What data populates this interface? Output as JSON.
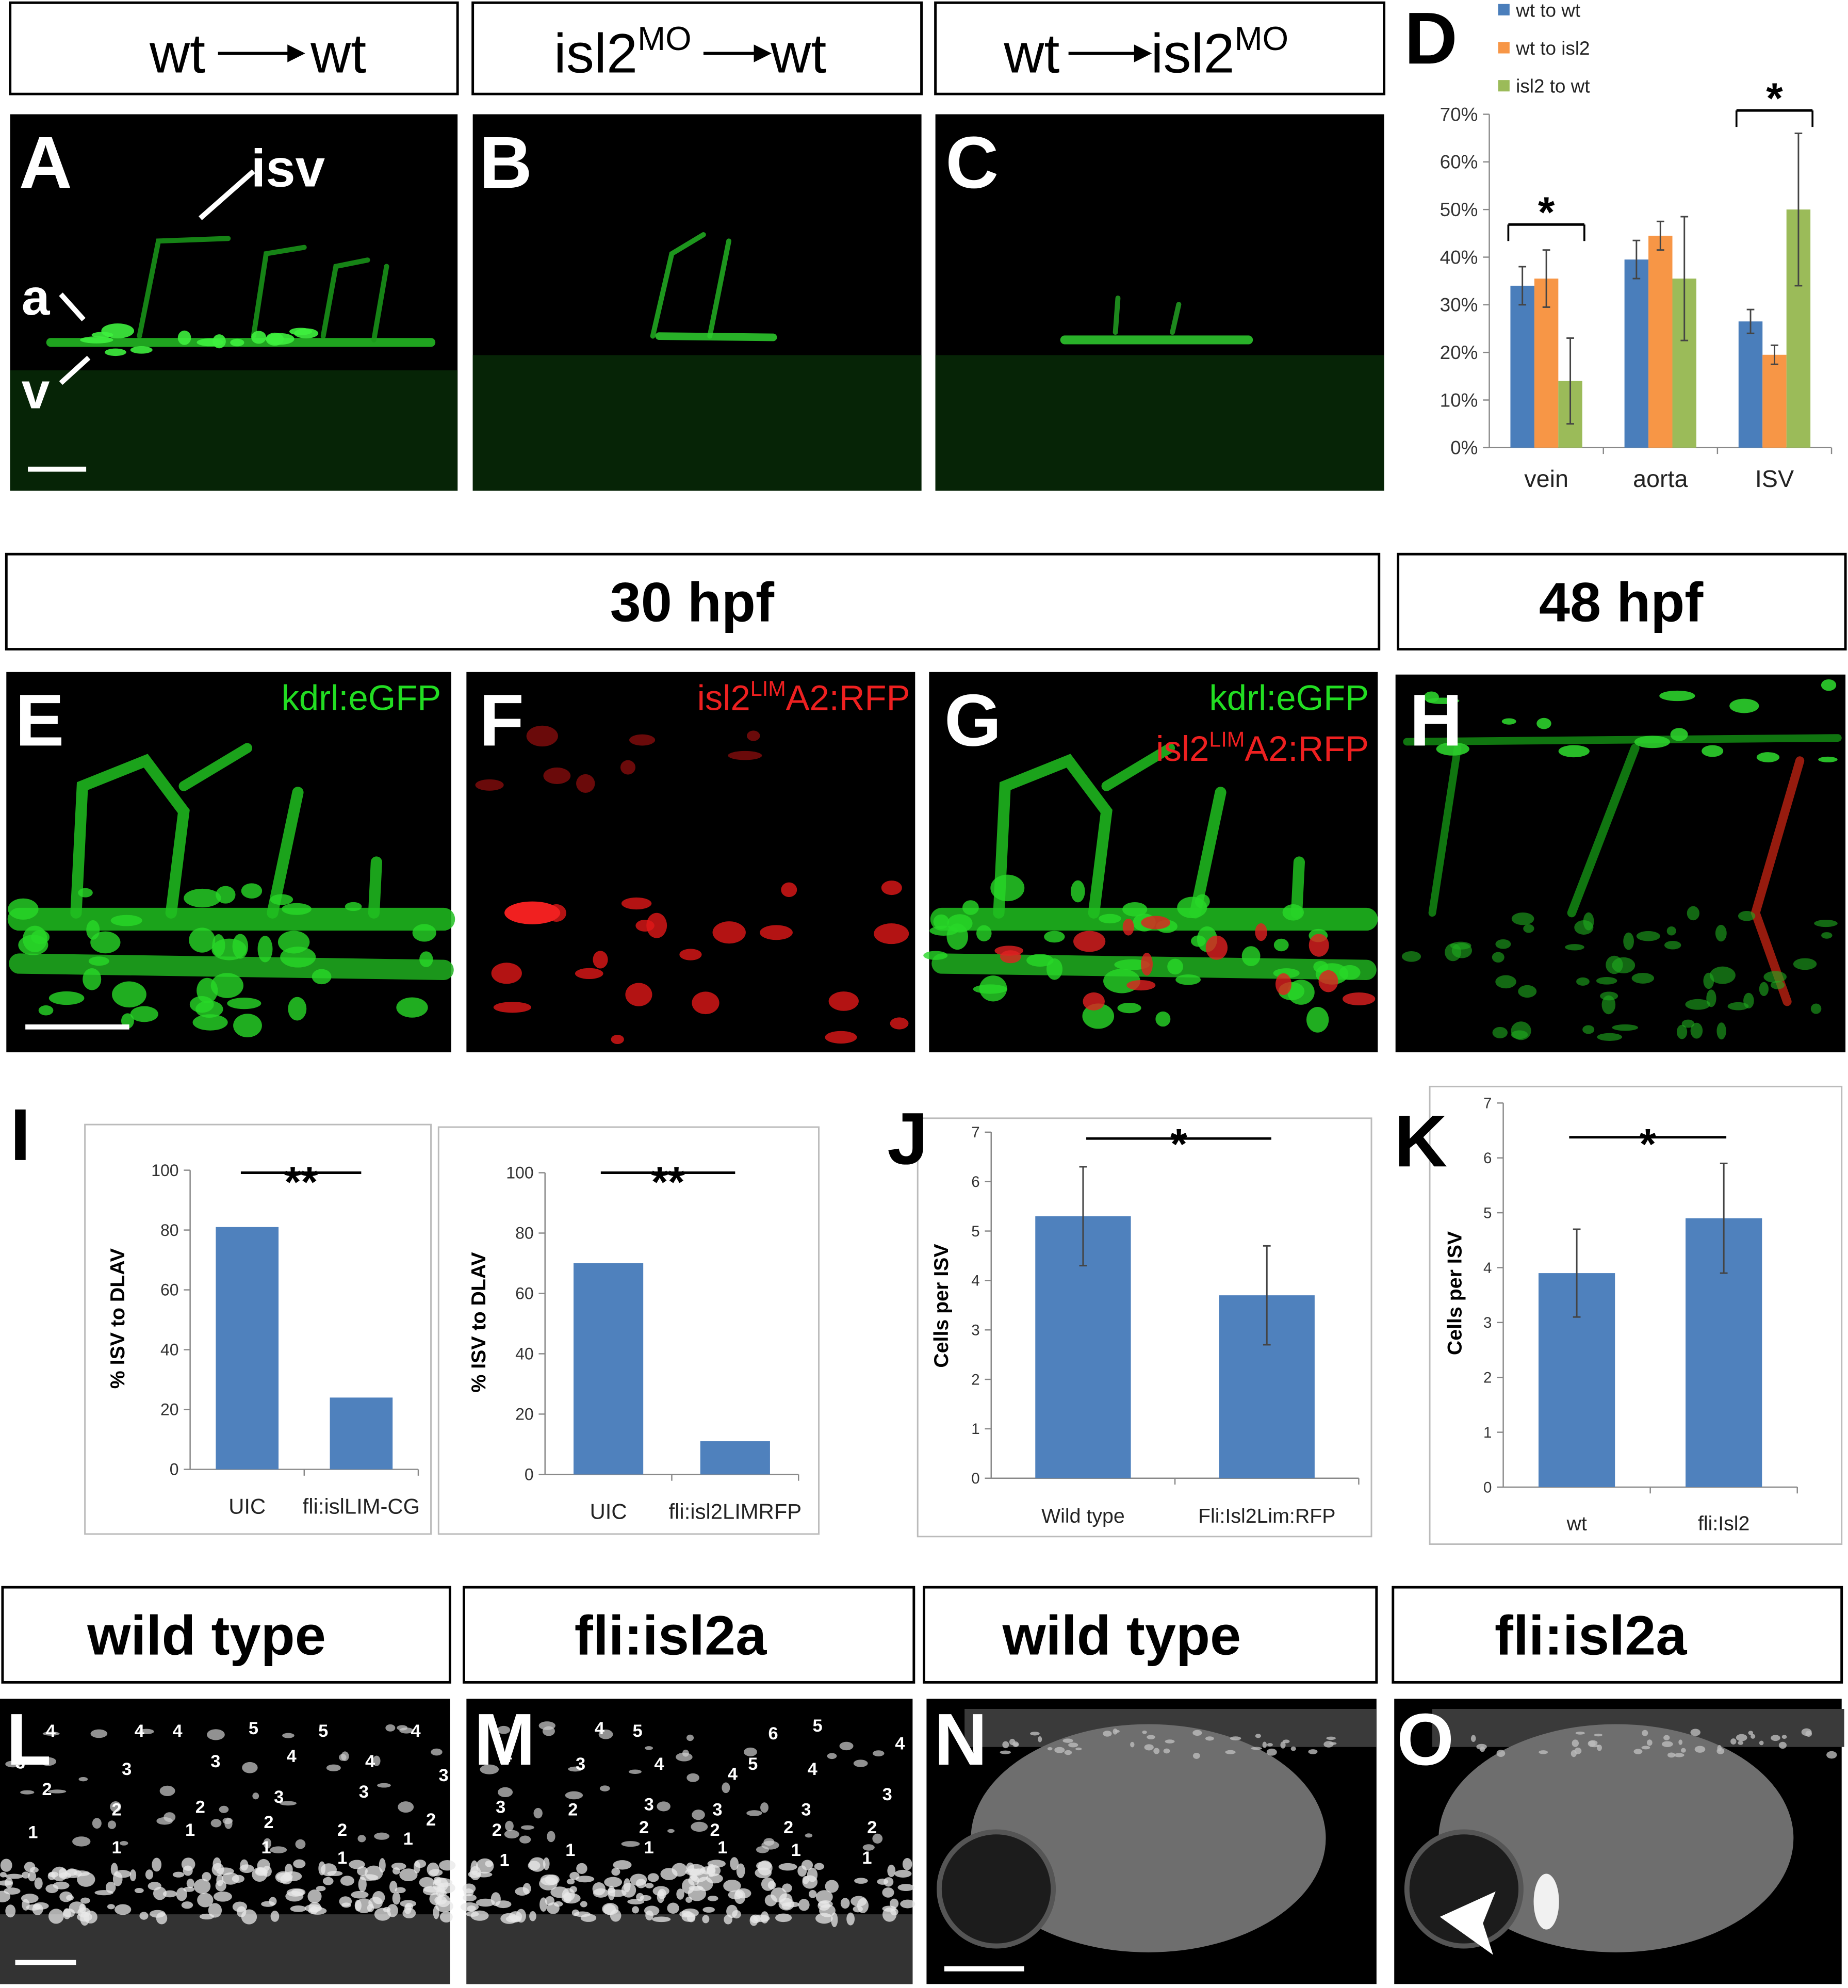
{
  "top_headers": [
    {
      "left": "wt",
      "right": "wt"
    },
    {
      "left": "isl2",
      "left_sup": "MO",
      "right": "wt"
    },
    {
      "left": "wt",
      "right": "isl2",
      "right_sup": "MO"
    }
  ],
  "mid_headers": [
    "30 hpf",
    "48 hpf"
  ],
  "bottom_headers": [
    "wild type",
    "fli:isl2a",
    "wild type",
    "fli:isl2a"
  ],
  "panel_letters": [
    "A",
    "B",
    "C",
    "D",
    "E",
    "F",
    "G",
    "H",
    "I",
    "J",
    "K",
    "L",
    "M",
    "N",
    "O"
  ],
  "panel_A": {
    "isv": "isv",
    "a": "a",
    "v": "v"
  },
  "panel_E": {
    "label": "kdrl:eGFP"
  },
  "panel_F": {
    "label": [
      "isl2",
      "LIM",
      "A2:RFP"
    ]
  },
  "panel_G": {
    "label_green": "kdrl:eGFP",
    "label_red": [
      "isl2",
      "LIM",
      "A2:RFP"
    ]
  },
  "panel_L": {
    "cell_numbers": [
      "4",
      "3",
      "2",
      "1",
      "4",
      "4",
      "5",
      "5",
      "4",
      "3",
      "4",
      "4",
      "3",
      "3",
      "3",
      "3",
      "2",
      "2",
      "2",
      "2",
      "1",
      "1",
      "1",
      "2",
      "1",
      "1"
    ]
  },
  "panel_M": {
    "cell_numbers": [
      "4",
      "5",
      "6",
      "5",
      "4",
      "4",
      "3",
      "4",
      "4",
      "5",
      "4",
      "3",
      "3",
      "2",
      "1",
      "2",
      "3",
      "2",
      "3",
      "3",
      "2",
      "2",
      "2",
      "1",
      "1",
      "1",
      "1",
      "1"
    ]
  },
  "chart_data": [
    {
      "type": "bar",
      "ylim": [
        0,
        70
      ],
      "yticks": [
        {
          "value": 0,
          "label": "0%"
        },
        {
          "value": 10,
          "label": "10%"
        },
        {
          "value": 20,
          "label": "20%"
        },
        {
          "value": 30,
          "label": "30%"
        },
        {
          "value": 40,
          "label": "40%"
        },
        {
          "value": 50,
          "label": "50%"
        },
        {
          "value": 60,
          "label": "60%"
        },
        {
          "value": 70,
          "label": "70%"
        }
      ],
      "categories": [
        "vein",
        "aorta",
        "ISV"
      ],
      "series": [
        {
          "name": "wt to wt",
          "color": "#4a7ebb",
          "values": [
            34,
            39.5,
            26.5
          ],
          "errors": [
            4,
            4,
            2.5
          ]
        },
        {
          "name": "wt to isl2",
          "color": "#f79646",
          "values": [
            35.5,
            44.5,
            19.5
          ],
          "errors": [
            6,
            3,
            2
          ]
        },
        {
          "name": "isl2 to wt",
          "color": "#9bbb59",
          "values": [
            14,
            35.5,
            50
          ],
          "errors": [
            9,
            13,
            16
          ]
        }
      ],
      "significance": [
        "*",
        "*"
      ]
    },
    {
      "type": "bar",
      "y_label": "% ISV to DLAV",
      "ylim": [
        0,
        100
      ],
      "yticks": [
        0,
        20,
        40,
        60,
        80,
        100
      ],
      "categories": [
        "UIC",
        "fli:islLIM-CG"
      ],
      "values": [
        81,
        24
      ],
      "color": "#4f81bd",
      "significance": [
        "**"
      ]
    },
    {
      "type": "bar",
      "y_label": "% ISV to DLAV",
      "ylim": [
        0,
        100
      ],
      "yticks": [
        0,
        20,
        40,
        60,
        80,
        100
      ],
      "categories": [
        "UIC",
        "fli:isl2LIMRFP"
      ],
      "values": [
        70,
        11
      ],
      "color": "#4f81bd",
      "significance": [
        "**"
      ]
    },
    {
      "type": "bar",
      "y_label": "Cells per ISV",
      "ylim": [
        0,
        7
      ],
      "yticks": [
        0,
        1,
        2,
        3,
        4,
        5,
        6,
        7
      ],
      "categories": [
        "Wild type",
        "Fli:Isl2Lim:RFP"
      ],
      "values": [
        5.3,
        3.7
      ],
      "errors": [
        1,
        1
      ],
      "color": "#4f81bd",
      "significance": [
        "*"
      ]
    },
    {
      "type": "bar",
      "y_label": "Cells per ISV",
      "ylim": [
        0,
        7
      ],
      "yticks": [
        0,
        1,
        2,
        3,
        4,
        5,
        6,
        7
      ],
      "categories": [
        "wt",
        "fli:Isl2"
      ],
      "values": [
        3.9,
        4.9
      ],
      "errors": [
        0.8,
        1
      ],
      "color": "#4f81bd",
      "significance": [
        "*"
      ]
    }
  ]
}
